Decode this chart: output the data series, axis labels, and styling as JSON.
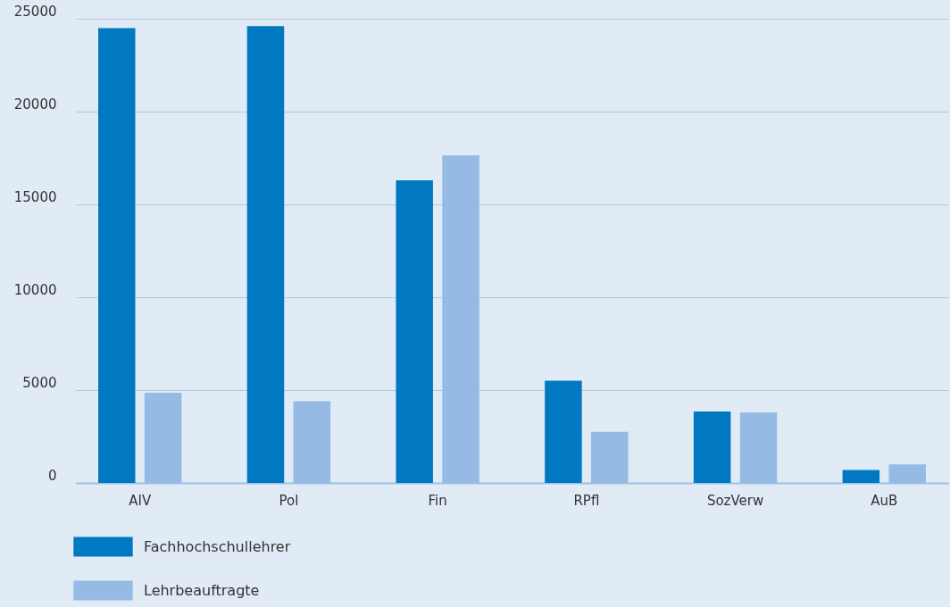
{
  "chart_data": {
    "type": "bar",
    "categories": [
      "AIV",
      "Pol",
      "Fin",
      "RPfl",
      "SozVerw",
      "AuB"
    ],
    "series": [
      {
        "name": "Fachhochschullehrer",
        "color": "#0078c2",
        "values": [
          24500,
          24600,
          16300,
          5500,
          3850,
          700
        ]
      },
      {
        "name": "Lehrbeauftragte",
        "color": "#95bae3",
        "values": [
          4850,
          4400,
          17650,
          2750,
          3800,
          1000
        ]
      }
    ],
    "ylim": [
      0,
      25000
    ],
    "yticks": [
      0,
      5000,
      10000,
      15000,
      20000,
      25000
    ],
    "grid": "y",
    "legend": "bottom"
  }
}
